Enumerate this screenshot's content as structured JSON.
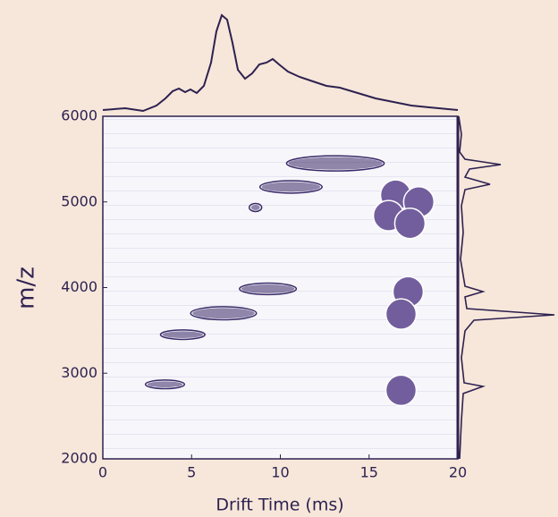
{
  "chart_data": {
    "type": "scatter",
    "xlabel": "Drift Time (ms)",
    "ylabel": "m/z",
    "xlim": [
      0,
      20
    ],
    "ylim": [
      2000,
      6000
    ],
    "xticks": [
      0,
      5,
      10,
      15,
      20
    ],
    "yticks": [
      2000,
      3000,
      4000,
      5000,
      6000
    ],
    "series": [
      {
        "marker": "contour",
        "color": "#3a2a68",
        "x": [
          13.1,
          10.6,
          9.3,
          6.8,
          4.5,
          3.5,
          8.6
        ],
        "values": [
          5450,
          5175,
          3985,
          3700,
          3450,
          2870,
          4935
        ],
        "widths": [
          5.3,
          3.3,
          3.0,
          3.5,
          2.3,
          2.0,
          0.5
        ]
      },
      {
        "marker": "circle",
        "color": "#725e9d",
        "x": [
          16.5,
          17.8,
          16.1,
          17.3,
          17.2,
          16.8,
          16.8
        ],
        "values": [
          5080,
          5000,
          4840,
          4750,
          3950,
          3690,
          2800
        ]
      }
    ]
  }
}
